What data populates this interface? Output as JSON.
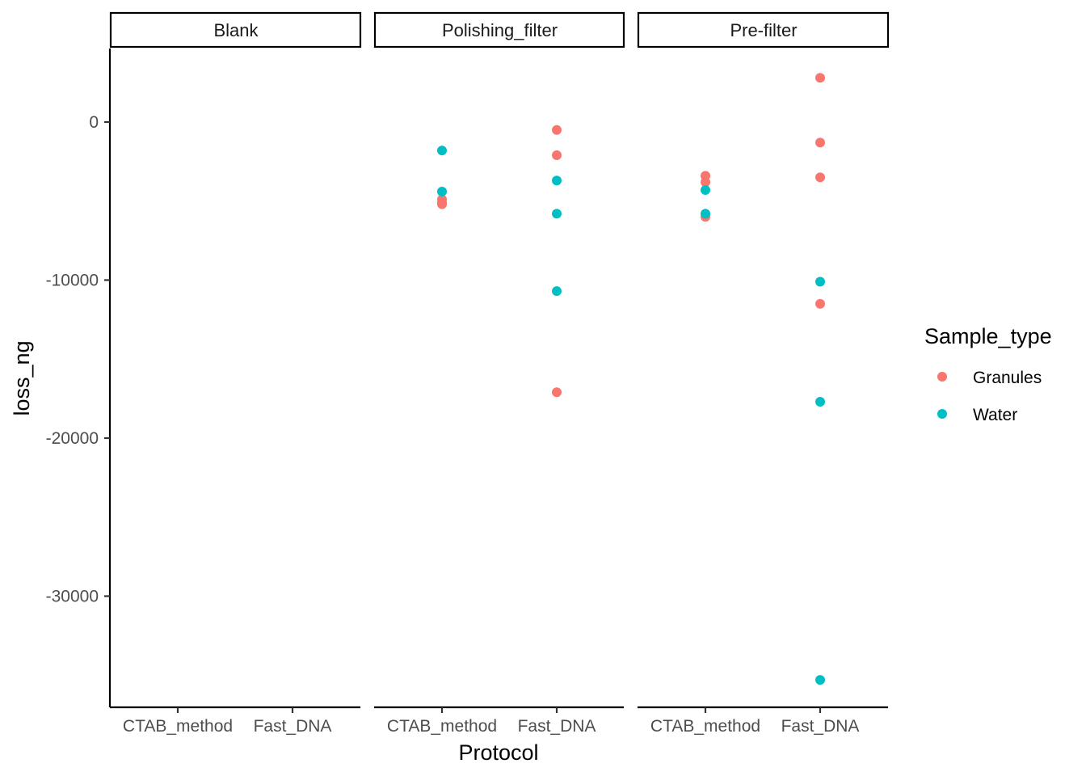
{
  "chart_data": {
    "type": "scatter",
    "facet_var": "Filter",
    "facets": [
      "Blank",
      "Polishing_filter",
      "Pre-filter"
    ],
    "categories": [
      "CTAB_method",
      "Fast_DNA"
    ],
    "xlabel": "Protocol",
    "ylabel": "loss_ng",
    "ylim": [
      -36500,
      4700
    ],
    "yticks": [
      0,
      -10000,
      -20000,
      -30000
    ],
    "ytick_labels": [
      "0",
      "-10000",
      "-20000",
      "-30000"
    ],
    "grid": false,
    "legend": {
      "title": "Sample_type",
      "position": "right",
      "entries": [
        {
          "name": "Granules",
          "color": "#F8766D"
        },
        {
          "name": "Water",
          "color": "#00BFC4"
        }
      ]
    },
    "series": [
      {
        "name": "Granules",
        "color": "#F8766D",
        "points": [
          {
            "facet": "Polishing_filter",
            "x": "CTAB_method",
            "y": -4900
          },
          {
            "facet": "Polishing_filter",
            "x": "CTAB_method",
            "y": -5100
          },
          {
            "facet": "Polishing_filter",
            "x": "CTAB_method",
            "y": -5200
          },
          {
            "facet": "Polishing_filter",
            "x": "Fast_DNA",
            "y": -500
          },
          {
            "facet": "Polishing_filter",
            "x": "Fast_DNA",
            "y": -2100
          },
          {
            "facet": "Polishing_filter",
            "x": "Fast_DNA",
            "y": -17100
          },
          {
            "facet": "Pre-filter",
            "x": "CTAB_method",
            "y": -3400
          },
          {
            "facet": "Pre-filter",
            "x": "CTAB_method",
            "y": -3800
          },
          {
            "facet": "Pre-filter",
            "x": "CTAB_method",
            "y": -6000
          },
          {
            "facet": "Pre-filter",
            "x": "Fast_DNA",
            "y": 2800
          },
          {
            "facet": "Pre-filter",
            "x": "Fast_DNA",
            "y": -1300
          },
          {
            "facet": "Pre-filter",
            "x": "Fast_DNA",
            "y": -3500
          },
          {
            "facet": "Pre-filter",
            "x": "Fast_DNA",
            "y": -11500
          }
        ]
      },
      {
        "name": "Water",
        "color": "#00BFC4",
        "points": [
          {
            "facet": "Polishing_filter",
            "x": "CTAB_method",
            "y": -1800
          },
          {
            "facet": "Polishing_filter",
            "x": "CTAB_method",
            "y": -4400
          },
          {
            "facet": "Polishing_filter",
            "x": "Fast_DNA",
            "y": -3700
          },
          {
            "facet": "Polishing_filter",
            "x": "Fast_DNA",
            "y": -5800
          },
          {
            "facet": "Polishing_filter",
            "x": "Fast_DNA",
            "y": -10700
          },
          {
            "facet": "Pre-filter",
            "x": "CTAB_method",
            "y": -4300
          },
          {
            "facet": "Pre-filter",
            "x": "CTAB_method",
            "y": -5800
          },
          {
            "facet": "Pre-filter",
            "x": "Fast_DNA",
            "y": -10100
          },
          {
            "facet": "Pre-filter",
            "x": "Fast_DNA",
            "y": -17700
          },
          {
            "facet": "Pre-filter",
            "x": "Fast_DNA",
            "y": -35300
          }
        ]
      }
    ]
  }
}
